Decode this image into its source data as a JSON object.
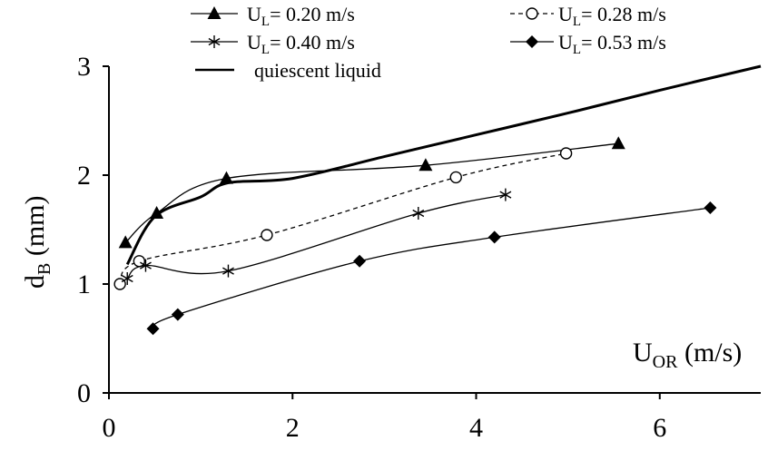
{
  "chart_data": {
    "type": "line",
    "xlabel_main": "U",
    "xlabel_sub": "OR",
    "xlabel_unit": " (m/s)",
    "ylabel_main": "d",
    "ylabel_sub": "B",
    "ylabel_unit": " (mm)",
    "xlim": [
      0,
      7.1
    ],
    "ylim": [
      0,
      3
    ],
    "xticks": [
      0,
      2,
      4,
      6
    ],
    "xtick_labels": [
      "0",
      "2",
      "4",
      "6"
    ],
    "yticks": [
      0,
      1,
      2,
      3
    ],
    "ytick_labels": [
      "0",
      "1",
      "2",
      "3"
    ],
    "grid": false,
    "legend_position": "top",
    "series": [
      {
        "legend_main": "U",
        "legend_sub": "L",
        "legend_value": "= 0.20 m/s",
        "marker": "triangle",
        "dash": "solid",
        "x": [
          0.18,
          0.52,
          1.28,
          3.45,
          5.55
        ],
        "y": [
          1.38,
          1.65,
          1.97,
          2.09,
          2.29
        ]
      },
      {
        "legend_main": "U",
        "legend_sub": "L",
        "legend_value": "= 0.28 m/s",
        "marker": "circle",
        "dash": "dashed",
        "x": [
          0.12,
          0.33,
          1.72,
          3.78,
          4.98
        ],
        "y": [
          1.0,
          1.21,
          1.45,
          1.98,
          2.2
        ]
      },
      {
        "legend_main": "U",
        "legend_sub": "L",
        "legend_value": "= 0.40 m/s",
        "marker": "asterisk",
        "dash": "solid",
        "x": [
          0.2,
          0.4,
          1.3,
          3.37,
          4.32
        ],
        "y": [
          1.05,
          1.17,
          1.12,
          1.65,
          1.82
        ]
      },
      {
        "legend_main": "U",
        "legend_sub": "L",
        "legend_value": "= 0.53 m/s",
        "marker": "diamond",
        "dash": "solid",
        "x": [
          0.48,
          0.75,
          2.73,
          4.2,
          6.55
        ],
        "y": [
          0.59,
          0.72,
          1.21,
          1.43,
          1.7
        ]
      },
      {
        "legend_text": "quiescent liquid",
        "marker": "none",
        "dash": "solid",
        "thick": true,
        "x": [
          0.2,
          0.5,
          1.0,
          1.3,
          2.0,
          3.0,
          4.0,
          5.0,
          6.0,
          7.1
        ],
        "y": [
          1.18,
          1.62,
          1.8,
          1.93,
          1.97,
          2.17,
          2.37,
          2.57,
          2.78,
          3.0
        ]
      }
    ]
  }
}
